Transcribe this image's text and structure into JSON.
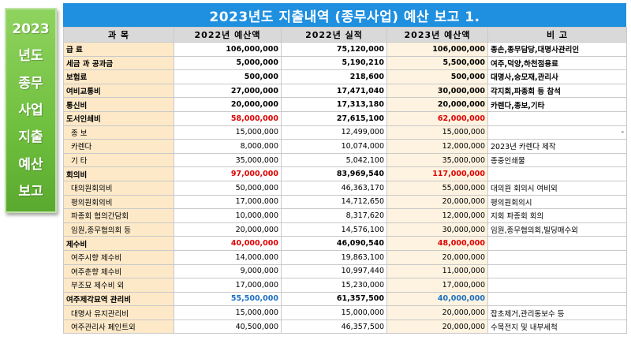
{
  "sidebar": {
    "lines": [
      "2023",
      "년도",
      "종무",
      "사업",
      "지출",
      "예산",
      "보고"
    ]
  },
  "title": "2023년도 지출내역 (종무사업) 예산 보고 1.",
  "headers": {
    "item": "과  목",
    "b2022": "2022년 예산액",
    "a2022": "2022년 실적",
    "b2023": "2023년 예산액",
    "note": "비    고"
  },
  "rows": [
    {
      "item": "급 료",
      "b2022": "106,000,000",
      "a2022": "75,120,000",
      "b2023": "106,000,000",
      "note": "종손,종무담당,대명사관리인",
      "type": "main"
    },
    {
      "item": "세금 과 공과금",
      "b2022": "5,000,000",
      "a2022": "5,190,210",
      "b2023": "5,500,000",
      "note": "여주,덕양,하천점용료",
      "type": "main"
    },
    {
      "item": "보험료",
      "b2022": "500,000",
      "a2022": "218,600",
      "b2023": "500,000",
      "note": "대명사,숭모재,관리사",
      "type": "main"
    },
    {
      "item": "여비교통비",
      "b2022": "27,000,000",
      "a2022": "17,471,040",
      "b2023": "30,000,000",
      "note": "각지회,파종회 등 참석",
      "type": "main"
    },
    {
      "item": "통신비",
      "b2022": "20,000,000",
      "a2022": "17,313,180",
      "b2023": "20,000,000",
      "note": "카렌다,종보,기타",
      "type": "main"
    },
    {
      "item": "도서인쇄비",
      "b2022": "58,000,000",
      "a2022": "27,615,100",
      "b2023": "62,000,000",
      "note": "",
      "type": "main",
      "color": "red"
    },
    {
      "item": "종 보",
      "b2022": "15,000,000",
      "a2022": "12,499,000",
      "b2023": "15,000,000",
      "note": "-",
      "type": "sub"
    },
    {
      "item": "카렌다",
      "b2022": "8,000,000",
      "a2022": "10,074,000",
      "b2023": "12,000,000",
      "note": "2023년 카렌다 제작",
      "type": "sub"
    },
    {
      "item": "기 타",
      "b2022": "35,000,000",
      "a2022": "5,042,100",
      "b2023": "35,000,000",
      "note": "종중인쇄물",
      "type": "sub"
    },
    {
      "item": "회의비",
      "b2022": "97,000,000",
      "a2022": "83,969,540",
      "b2023": "117,000,000",
      "note": "",
      "type": "main",
      "color": "red"
    },
    {
      "item": "대의원회의비",
      "b2022": "50,000,000",
      "a2022": "46,363,170",
      "b2023": "55,000,000",
      "note": "대의원 회의시 여비외",
      "type": "sub"
    },
    {
      "item": "평의원회의비",
      "b2022": "17,000,000",
      "a2022": "14,712,650",
      "b2023": "20,000,000",
      "note": "평의원회의시",
      "type": "sub"
    },
    {
      "item": "파종회 협의간담회",
      "b2022": "10,000,000",
      "a2022": "8,317,620",
      "b2023": "12,000,000",
      "note": "지회 파종회 회의",
      "type": "sub"
    },
    {
      "item": "임원,종무협의회 등",
      "b2022": "20,000,000",
      "a2022": "14,576,100",
      "b2023": "30,000,000",
      "note": "임원,종무협의회,빌딩매수외",
      "type": "sub"
    },
    {
      "item": "제수비",
      "b2022": "40,000,000",
      "a2022": "46,090,540",
      "b2023": "48,000,000",
      "note": "",
      "type": "main",
      "color": "red"
    },
    {
      "item": "여주시향 제수비",
      "b2022": "14,000,000",
      "a2022": "19,863,100",
      "b2023": "20,000,000",
      "note": "",
      "type": "sub"
    },
    {
      "item": "여주춘향 제수비",
      "b2022": "9,000,000",
      "a2022": "10,997,440",
      "b2023": "11,000,000",
      "note": "",
      "type": "sub"
    },
    {
      "item": "부조묘 제수비 외",
      "b2022": "17,000,000",
      "a2022": "15,230,000",
      "b2023": "17,000,000",
      "note": "",
      "type": "sub"
    },
    {
      "item": "여주제각묘역 관리비",
      "b2022": "55,500,000",
      "a2022": "61,357,500",
      "b2023": "40,000,000",
      "note": "",
      "type": "main",
      "color": "blue"
    },
    {
      "item": "대명사 유지관리비",
      "b2022": "15,000,000",
      "a2022": "15,000,000",
      "b2023": "20,000,000",
      "note": "잡초제거,관리동보수 등",
      "type": "sub"
    },
    {
      "item": "여주관리사 페인트외",
      "b2022": "40,500,000",
      "a2022": "46,357,500",
      "b2023": "20,000,000",
      "note": "수목전지 및 내부세척",
      "type": "sub"
    }
  ]
}
